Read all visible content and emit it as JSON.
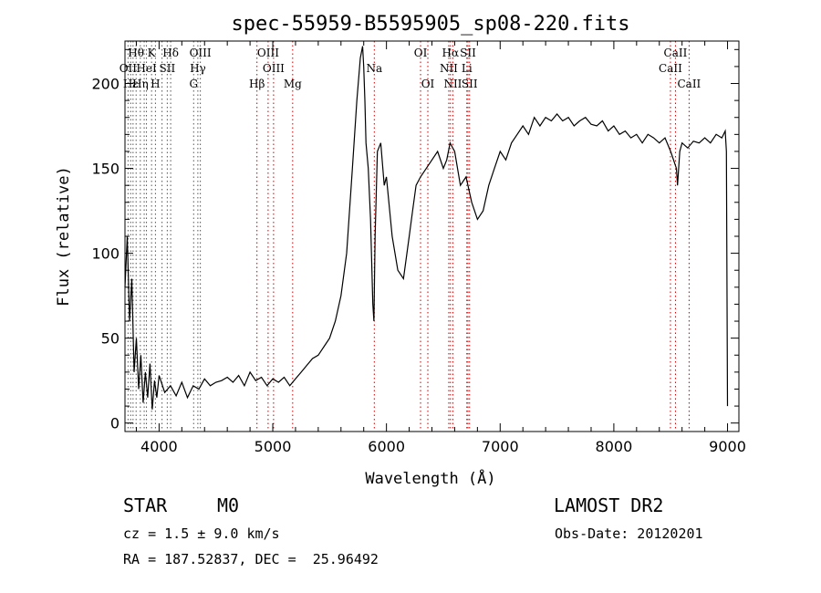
{
  "chart_data": {
    "type": "line",
    "title": "spec-55959-B5595905_sp08-220.fits",
    "xlabel": "Wavelength (Å)",
    "ylabel": "Flux (relative)",
    "xlim": [
      3700,
      9100
    ],
    "ylim": [
      -5,
      225
    ],
    "xticks": [
      4000,
      5000,
      6000,
      7000,
      8000,
      9000
    ],
    "yticks": [
      0,
      50,
      100,
      150,
      200
    ],
    "series": [
      {
        "x": [
          3700,
          3720,
          3740,
          3760,
          3780,
          3800,
          3820,
          3840,
          3860,
          3880,
          3900,
          3920,
          3940,
          3960,
          3980,
          4000,
          4050,
          4100,
          4150,
          4200,
          4250,
          4300,
          4350,
          4400,
          4450,
          4500,
          4550,
          4600,
          4650,
          4700,
          4750,
          4800,
          4850,
          4900,
          4950,
          5000,
          5050,
          5100,
          5150,
          5200,
          5250,
          5300,
          5350,
          5400,
          5450,
          5500,
          5550,
          5600,
          5650,
          5700,
          5740,
          5770,
          5790,
          5800,
          5810,
          5820,
          5840,
          5860,
          5880,
          5890,
          5900,
          5920,
          5950,
          5980,
          6000,
          6050,
          6100,
          6150,
          6200,
          6230,
          6260,
          6300,
          6350,
          6400,
          6450,
          6500,
          6530,
          6560,
          6600,
          6650,
          6700,
          6750,
          6800,
          6850,
          6900,
          6950,
          7000,
          7050,
          7100,
          7150,
          7200,
          7250,
          7300,
          7350,
          7400,
          7450,
          7500,
          7550,
          7600,
          7650,
          7700,
          7750,
          7800,
          7850,
          7900,
          7950,
          8000,
          8050,
          8100,
          8150,
          8200,
          8250,
          8300,
          8350,
          8400,
          8450,
          8500,
          8550,
          8560,
          8580,
          8600,
          8650,
          8700,
          8750,
          8800,
          8850,
          8900,
          8950,
          8980,
          8990,
          9000
        ],
        "y": [
          80,
          110,
          60,
          85,
          30,
          50,
          20,
          40,
          12,
          30,
          15,
          35,
          8,
          25,
          15,
          28,
          18,
          22,
          16,
          24,
          15,
          22,
          20,
          26,
          22,
          24,
          25,
          27,
          24,
          28,
          22,
          30,
          25,
          27,
          22,
          26,
          24,
          27,
          22,
          26,
          30,
          34,
          38,
          40,
          45,
          50,
          60,
          75,
          100,
          150,
          190,
          215,
          222,
          210,
          190,
          165,
          150,
          120,
          70,
          60,
          110,
          160,
          165,
          140,
          145,
          110,
          90,
          85,
          110,
          125,
          140,
          145,
          150,
          155,
          160,
          150,
          155,
          165,
          160,
          140,
          145,
          130,
          120,
          125,
          140,
          150,
          160,
          155,
          165,
          170,
          175,
          170,
          180,
          175,
          180,
          178,
          182,
          178,
          180,
          175,
          178,
          180,
          176,
          175,
          178,
          172,
          175,
          170,
          172,
          168,
          170,
          165,
          170,
          168,
          165,
          168,
          160,
          150,
          140,
          160,
          165,
          162,
          166,
          165,
          168,
          165,
          170,
          168,
          172,
          160,
          10
        ]
      }
    ],
    "lines": [
      {
        "x": 3727,
        "color": "#555555"
      },
      {
        "x": 3750,
        "color": "#555555"
      },
      {
        "x": 3771,
        "color": "#555555"
      },
      {
        "x": 3798,
        "color": "#555555"
      },
      {
        "x": 3835,
        "color": "#555555"
      },
      {
        "x": 3869,
        "color": "#555555"
      },
      {
        "x": 3889,
        "color": "#555555"
      },
      {
        "x": 3934,
        "color": "#555555"
      },
      {
        "x": 3968,
        "color": "#555555"
      },
      {
        "x": 4026,
        "color": "#555555"
      },
      {
        "x": 4072,
        "color": "#555555"
      },
      {
        "x": 4102,
        "color": "#555555"
      },
      {
        "x": 4304,
        "color": "#555555"
      },
      {
        "x": 4341,
        "color": "#555555"
      },
      {
        "x": 4363,
        "color": "#555555"
      },
      {
        "x": 4861,
        "color": "#cc0000"
      },
      {
        "x": 4959,
        "color": "#cc0000"
      },
      {
        "x": 5007,
        "color": "#cc0000"
      },
      {
        "x": 5175,
        "color": "#cc0000"
      },
      {
        "x": 5893,
        "color": "#cc0000"
      },
      {
        "x": 6300,
        "color": "#cc0000"
      },
      {
        "x": 6364,
        "color": "#cc0000"
      },
      {
        "x": 6548,
        "color": "#cc0000"
      },
      {
        "x": 6563,
        "color": "#cc0000"
      },
      {
        "x": 6584,
        "color": "#cc0000"
      },
      {
        "x": 6707,
        "color": "#cc0000"
      },
      {
        "x": 6717,
        "color": "#cc0000"
      },
      {
        "x": 6731,
        "color": "#cc0000"
      },
      {
        "x": 8498,
        "color": "#cc0000"
      },
      {
        "x": 8542,
        "color": "#cc0000"
      },
      {
        "x": 8662,
        "color": "#cc0000"
      }
    ],
    "line_labels": [
      {
        "text": "Hθ",
        "x": 3797,
        "row": 1
      },
      {
        "text": "K",
        "x": 3934,
        "row": 1
      },
      {
        "text": "Hδ",
        "x": 4102,
        "row": 1
      },
      {
        "text": "OIII",
        "x": 4363,
        "row": 1
      },
      {
        "text": "OIII",
        "x": 4959,
        "row": 1
      },
      {
        "text": "OI",
        "x": 6300,
        "row": 1
      },
      {
        "text": "Hα",
        "x": 6563,
        "row": 1
      },
      {
        "text": "SII",
        "x": 6717,
        "row": 1
      },
      {
        "text": "CaII",
        "x": 8542,
        "row": 1
      },
      {
        "text": "OII",
        "x": 3727,
        "row": 2
      },
      {
        "text": "HeI",
        "x": 3889,
        "row": 2
      },
      {
        "text": "SII",
        "x": 4072,
        "row": 2
      },
      {
        "text": "Hγ",
        "x": 4341,
        "row": 2
      },
      {
        "text": "OIII",
        "x": 5007,
        "row": 2
      },
      {
        "text": "Na",
        "x": 5893,
        "row": 2
      },
      {
        "text": "NII",
        "x": 6548,
        "row": 2
      },
      {
        "text": "Li",
        "x": 6707,
        "row": 2
      },
      {
        "text": "CaII",
        "x": 8498,
        "row": 2
      },
      {
        "text": "Hε",
        "x": 3750,
        "row": 3
      },
      {
        "text": "Hη",
        "x": 3835,
        "row": 3
      },
      {
        "text": "H",
        "x": 3968,
        "row": 3
      },
      {
        "text": "G",
        "x": 4304,
        "row": 3
      },
      {
        "text": "Hβ",
        "x": 4861,
        "row": 3
      },
      {
        "text": "Mg",
        "x": 5175,
        "row": 3
      },
      {
        "text": "OI",
        "x": 6364,
        "row": 3
      },
      {
        "text": "NII",
        "x": 6584,
        "row": 3
      },
      {
        "text": "SII",
        "x": 6731,
        "row": 3
      },
      {
        "text": "CaII",
        "x": 8662,
        "row": 3
      }
    ]
  },
  "info": {
    "class": "STAR",
    "subclass": "M0",
    "survey": "LAMOST DR2",
    "cz": "cz = 1.5 ± 9.0 km/s",
    "obs_date": "Obs-Date: 20120201",
    "radec": "RA = 187.52837, DEC =  25.96492"
  }
}
